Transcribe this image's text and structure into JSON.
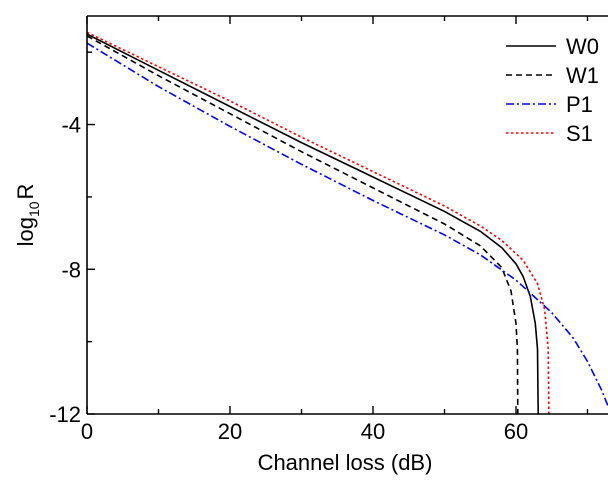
{
  "chart_data": {
    "type": "line",
    "xlabel": "Channel loss (dB)",
    "ylabel": {
      "base": "log",
      "sub": "10",
      "var": "R"
    },
    "xlim": [
      0,
      73
    ],
    "ylim": [
      -12,
      -1
    ],
    "x_ticks": [
      0,
      20,
      40,
      60
    ],
    "y_ticks": [
      -4,
      -8,
      -12
    ],
    "grid": false,
    "legend_position": "top-right",
    "series": [
      {
        "name": "W0",
        "color": "#000000",
        "dash": "solid",
        "points": [
          [
            0,
            -1.5
          ],
          [
            10,
            -2.5
          ],
          [
            20,
            -3.5
          ],
          [
            30,
            -4.5
          ],
          [
            40,
            -5.45
          ],
          [
            50,
            -6.4
          ],
          [
            55,
            -6.95
          ],
          [
            58,
            -7.4
          ],
          [
            60,
            -7.85
          ],
          [
            61,
            -8.2
          ],
          [
            62,
            -8.75
          ],
          [
            62.7,
            -9.5
          ],
          [
            63,
            -10.2
          ],
          [
            63.1,
            -12
          ]
        ]
      },
      {
        "name": "W1",
        "color": "#000000",
        "dash": "dashed",
        "points": [
          [
            0,
            -1.55
          ],
          [
            10,
            -2.65
          ],
          [
            20,
            -3.7
          ],
          [
            30,
            -4.75
          ],
          [
            40,
            -5.75
          ],
          [
            50,
            -6.75
          ],
          [
            55,
            -7.35
          ],
          [
            58,
            -7.95
          ],
          [
            59.3,
            -8.6
          ],
          [
            60,
            -9.5
          ],
          [
            60.2,
            -10.2
          ],
          [
            60.25,
            -12
          ]
        ]
      },
      {
        "name": "P1",
        "color": "#0000ff",
        "dash": "dashdot",
        "points": [
          [
            0,
            -1.75
          ],
          [
            10,
            -2.95
          ],
          [
            20,
            -4.05
          ],
          [
            30,
            -5.1
          ],
          [
            40,
            -6.1
          ],
          [
            50,
            -7.05
          ],
          [
            55,
            -7.6
          ],
          [
            60,
            -8.3
          ],
          [
            65,
            -9.2
          ],
          [
            68,
            -9.9
          ],
          [
            70,
            -10.55
          ],
          [
            72,
            -11.35
          ],
          [
            73,
            -11.85
          ]
        ]
      },
      {
        "name": "S1",
        "color": "#ff0000",
        "dash": "dotted",
        "points": [
          [
            0,
            -1.45
          ],
          [
            10,
            -2.4
          ],
          [
            20,
            -3.35
          ],
          [
            30,
            -4.35
          ],
          [
            40,
            -5.3
          ],
          [
            50,
            -6.25
          ],
          [
            55,
            -6.8
          ],
          [
            58,
            -7.2
          ],
          [
            61,
            -7.75
          ],
          [
            63,
            -8.4
          ],
          [
            64,
            -9.1
          ],
          [
            64.5,
            -10.2
          ],
          [
            64.6,
            -12
          ]
        ]
      }
    ]
  }
}
